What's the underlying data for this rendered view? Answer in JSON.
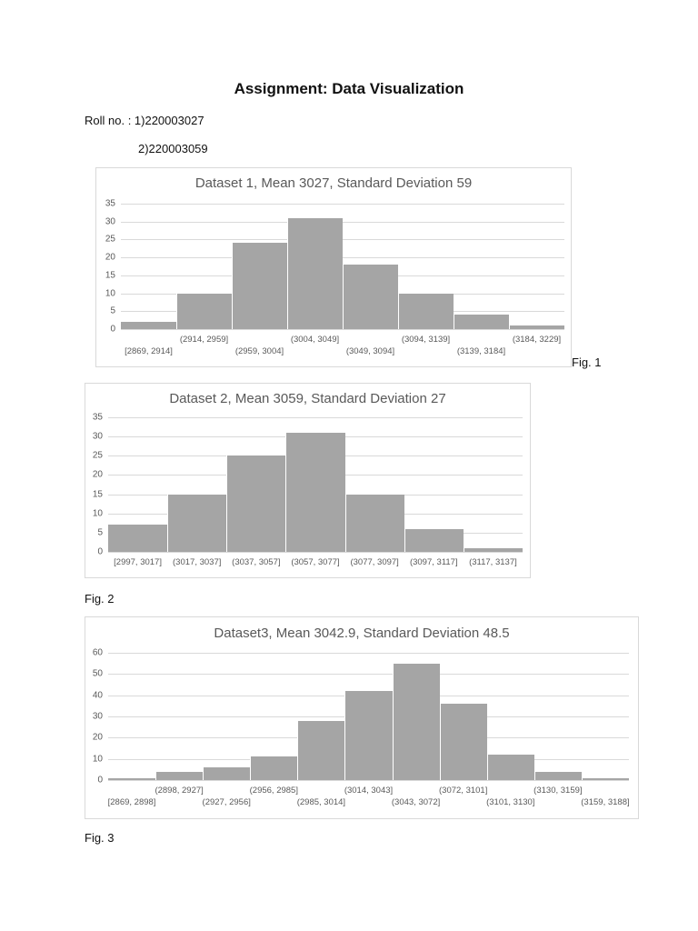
{
  "document": {
    "title": "Assignment: Data Visualization",
    "roll_label": "Roll no. : 1)220003027",
    "roll_second": "2)220003059",
    "fig_labels": [
      "Fig. 1",
      "Fig. 2",
      "Fig. 3"
    ]
  },
  "chart_data": [
    {
      "type": "bar",
      "title": "Dataset 1, Mean 3027, Standard Deviation 59",
      "xlabel": "",
      "ylabel": "",
      "categories": [
        "[2869, 2914]",
        "(2914, 2959]",
        "(2959, 3004]",
        "(3004, 3049]",
        "(3049, 3094]",
        "(3094, 3139]",
        "(3139, 3184]",
        "(3184, 3229]"
      ],
      "values": [
        2,
        10,
        24,
        31,
        18,
        10,
        4,
        1
      ],
      "ylim": [
        0,
        35
      ],
      "yticks": [
        0,
        5,
        10,
        15,
        20,
        25,
        30,
        35
      ],
      "grid": true,
      "legend": "none",
      "bar_color": "#a5a5a5",
      "histogram": true
    },
    {
      "type": "bar",
      "title": "Dataset 2, Mean 3059, Standard Deviation 27",
      "xlabel": "",
      "ylabel": "",
      "categories": [
        "[2997, 3017]",
        "(3017, 3037]",
        "(3037, 3057]",
        "(3057, 3077]",
        "(3077, 3097]",
        "(3097, 3117]",
        "(3117, 3137]"
      ],
      "values": [
        7,
        15,
        25,
        31,
        15,
        6,
        1
      ],
      "ylim": [
        0,
        35
      ],
      "yticks": [
        0,
        5,
        10,
        15,
        20,
        25,
        30,
        35
      ],
      "grid": true,
      "legend": "none",
      "bar_color": "#a5a5a5",
      "histogram": true
    },
    {
      "type": "bar",
      "title": "Dataset3, Mean 3042.9, Standard Deviation 48.5",
      "xlabel": "",
      "ylabel": "",
      "categories": [
        "[2869, 2898]",
        "(2898, 2927]",
        "(2927, 2956]",
        "(2956, 2985]",
        "(2985, 3014]",
        "(3014, 3043]",
        "(3043, 3072]",
        "(3072, 3101]",
        "(3101, 3130]",
        "(3130, 3159]",
        "(3159, 3188]"
      ],
      "values": [
        1,
        4,
        6,
        11,
        28,
        42,
        55,
        36,
        12,
        4,
        1
      ],
      "ylim": [
        0,
        60
      ],
      "yticks": [
        0,
        10,
        20,
        30,
        40,
        50,
        60
      ],
      "grid": true,
      "legend": "none",
      "bar_color": "#a5a5a5",
      "histogram": true
    }
  ]
}
